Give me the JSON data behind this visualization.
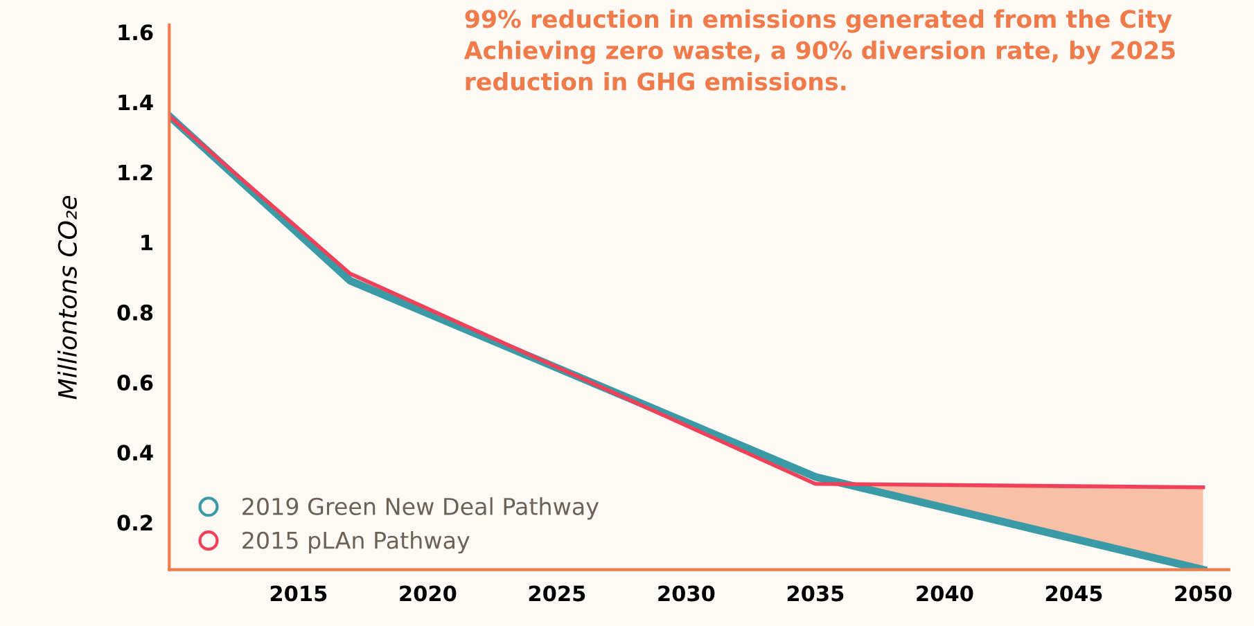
{
  "chart_data": {
    "type": "line",
    "ylabel": "Milliontons CO₂e",
    "annotations": [
      "99% reduction in emissions generated from the City",
      "Achieving zero waste, a 90% diversion rate, by 2025",
      "reduction in GHG emissions."
    ],
    "x": [
      2010,
      2017,
      2035,
      2050
    ],
    "series": [
      {
        "name": "2019 Green New Deal Pathway",
        "color": "#3a9aa5",
        "values": [
          1.36,
          0.89,
          0.33,
          0.065
        ]
      },
      {
        "name": "2015 pLAn Pathway",
        "color": "#f0415a",
        "values": [
          1.36,
          0.91,
          0.31,
          0.3
        ],
        "lower": [
          null,
          null,
          0.33,
          0.065
        ],
        "upper": [
          null,
          null,
          0.31,
          0.3
        ]
      }
    ],
    "xlim": [
      2010,
      2051
    ],
    "xticks": [
      2015,
      2020,
      2025,
      2030,
      2035,
      2040,
      2045,
      2050
    ],
    "ylim": [
      0.065,
      1.62
    ],
    "yticks": [
      0.2,
      0.4,
      0.6,
      0.8,
      1,
      1.2,
      1.4,
      1.6
    ],
    "grid": false,
    "legend": "bottom left"
  }
}
